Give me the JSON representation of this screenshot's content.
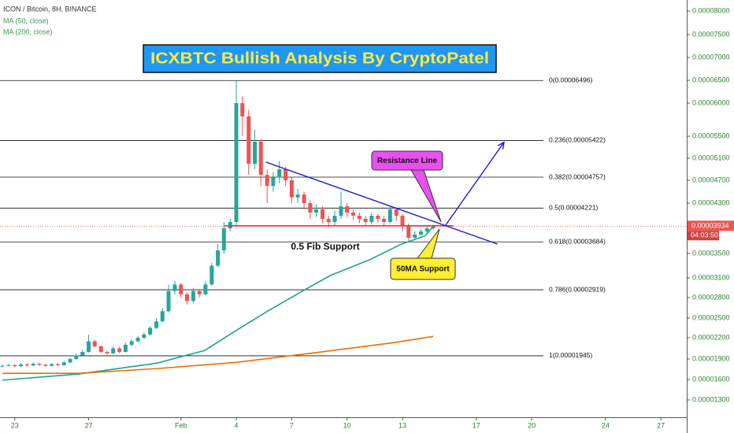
{
  "chart_data": {
    "type": "candlestick",
    "title": "ICXBTC Bullish Analysis By CryptoPatel",
    "symbol": "ICON / Bitcoin, 8H, BINANCE",
    "log_scale": false,
    "grid": false,
    "up_color": "#26a69a",
    "down_color": "#ef5350",
    "xlim": [
      -0.8,
      36.4
    ],
    "xticks": [
      {
        "value": 0,
        "label": "23"
      },
      {
        "value": 4,
        "label": "27"
      },
      {
        "value": 9,
        "label": "Feb"
      },
      {
        "value": 12,
        "label": "4"
      },
      {
        "value": 15,
        "label": "7"
      },
      {
        "value": 18,
        "label": "10"
      },
      {
        "value": 21,
        "label": "13"
      },
      {
        "value": 25,
        "label": "17"
      },
      {
        "value": 28,
        "label": "20"
      },
      {
        "value": 32,
        "label": "24"
      },
      {
        "value": 35,
        "label": "27"
      }
    ],
    "ylim": [
      1.05e-05,
      8.23e-05
    ],
    "yticks": [
      {
        "value": 8e-05,
        "label": "0.00008000"
      },
      {
        "value": 7.5e-05,
        "label": "0.00007500"
      },
      {
        "value": 7e-05,
        "label": "0.00007000"
      },
      {
        "value": 6.5e-05,
        "label": "0.00006500"
      },
      {
        "value": 6e-05,
        "label": "0.00006000"
      },
      {
        "value": 5.5e-05,
        "label": "0.00005500"
      },
      {
        "value": 5.1e-05,
        "label": "0.00005100"
      },
      {
        "value": 4.7e-05,
        "label": "0.00004700"
      },
      {
        "value": 4.3e-05,
        "label": "0.00004300"
      },
      {
        "value": 3.5e-05,
        "label": "0.00003500"
      },
      {
        "value": 3.1e-05,
        "label": "0.00003100"
      },
      {
        "value": 2.8e-05,
        "label": "0.00002800"
      },
      {
        "value": 2.5e-05,
        "label": "0.00002500"
      },
      {
        "value": 2.2e-05,
        "label": "0.00002200"
      },
      {
        "value": 1.9e-05,
        "label": "0.00001900"
      },
      {
        "value": 1.6e-05,
        "label": "0.00001600"
      },
      {
        "value": 1.3e-05,
        "label": "0.00001300"
      }
    ],
    "last_price": {
      "value": 3.934e-05,
      "label": "0.00003934"
    },
    "countdown": "04:03:50",
    "candles": {
      "x": [
        -0.67,
        -0.33,
        0,
        0.33,
        0.67,
        1,
        1.33,
        1.67,
        2,
        2.33,
        2.67,
        3,
        3.33,
        3.67,
        4,
        4.33,
        4.67,
        5,
        5.33,
        5.67,
        6,
        6.33,
        6.67,
        7,
        7.33,
        7.67,
        8,
        8.33,
        8.67,
        9,
        9.33,
        9.67,
        10,
        10.33,
        10.67,
        11,
        11.33,
        11.67,
        12,
        12.33,
        12.67,
        13,
        13.33,
        13.67,
        14,
        14.33,
        14.67,
        15,
        15.33,
        15.67,
        16,
        16.33,
        16.67,
        17,
        17.33,
        17.67,
        18,
        18.33,
        18.67,
        19,
        19.33,
        19.67,
        20,
        20.33,
        20.67,
        21,
        21.33,
        21.67,
        22,
        22.33,
        22.67
      ],
      "open": [
        1.79e-05,
        1.8e-05,
        1.81e-05,
        1.795e-05,
        1.82e-05,
        1.805e-05,
        1.83e-05,
        1.815e-05,
        1.8e-05,
        1.825e-05,
        1.81e-05,
        1.85e-05,
        1.9e-05,
        1.95e-05,
        2e-05,
        2.15e-05,
        2.08e-05,
        2e-05,
        1.98e-05,
        2.05e-05,
        2e-05,
        2.1e-05,
        2.15e-05,
        2.2e-05,
        2.25e-05,
        2.35e-05,
        2.45e-05,
        2.6e-05,
        2.9e-05,
        3e-05,
        2.85e-05,
        2.75e-05,
        2.9e-05,
        2.85e-05,
        3e-05,
        3.3e-05,
        3.55e-05,
        3.9e-05,
        4e-05,
        6e-05,
        5.8e-05,
        5e-05,
        5.4e-05,
        4.8e-05,
        4.6e-05,
        4.75e-05,
        4.9e-05,
        4.7e-05,
        4.4e-05,
        4.45e-05,
        4.3e-05,
        4.15e-05,
        4.2e-05,
        4.05e-05,
        4e-05,
        4.1e-05,
        4.25e-05,
        4.15e-05,
        4.1e-05,
        4.05e-05,
        4e-05,
        4.1e-05,
        4.05e-05,
        4e-05,
        4.2e-05,
        4.1e-05,
        3.95e-05,
        3.75e-05,
        3.8e-05,
        3.85e-05,
        3.9e-05
      ],
      "high": [
        1.82e-05,
        1.83e-05,
        1.825e-05,
        1.84e-05,
        1.835e-05,
        1.85e-05,
        1.845e-05,
        1.83e-05,
        1.84e-05,
        1.835e-05,
        1.87e-05,
        1.92e-05,
        1.98e-05,
        2.03e-05,
        2.25e-05,
        2.17e-05,
        2.09e-05,
        2.02e-05,
        2.08e-05,
        2.07e-05,
        2.13e-05,
        2.18e-05,
        2.23e-05,
        2.28e-05,
        2.38e-05,
        2.5e-05,
        2.65e-05,
        3e-05,
        3.05e-05,
        3.02e-05,
        2.88e-05,
        2.95e-05,
        2.93e-05,
        3.05e-05,
        3.35e-05,
        3.65e-05,
        4e-05,
        4.05e-05,
        6.496e-05,
        6.15e-05,
        5.9e-05,
        5.6e-05,
        5.45e-05,
        4.9e-05,
        4.85e-05,
        5.05e-05,
        4.95e-05,
        4.75e-05,
        4.55e-05,
        4.5e-05,
        4.35e-05,
        4.28e-05,
        4.25e-05,
        4.1e-05,
        4.18e-05,
        4.5e-05,
        4.3e-05,
        4.2e-05,
        4.15e-05,
        4.1e-05,
        4.15e-05,
        4.13e-05,
        4.1e-05,
        4.25e-05,
        4.23e-05,
        4.13e-05,
        3.98e-05,
        3.85e-05,
        3.89e-05,
        3.94e-05,
        3.96e-05
      ],
      "low": [
        1.775e-05,
        1.79e-05,
        1.78e-05,
        1.785e-05,
        1.79e-05,
        1.795e-05,
        1.8e-05,
        1.785e-05,
        1.79e-05,
        1.795e-05,
        1.8e-05,
        1.84e-05,
        1.89e-05,
        1.94e-05,
        1.99e-05,
        2.06e-05,
        1.98e-05,
        1.96e-05,
        1.97e-05,
        1.98e-05,
        1.99e-05,
        2.08e-05,
        2.13e-05,
        2.18e-05,
        2.23e-05,
        2.33e-05,
        2.43e-05,
        2.58e-05,
        2.85e-05,
        2.8e-05,
        2.7e-05,
        2.72e-05,
        2.8e-05,
        2.83e-05,
        2.98e-05,
        3.28e-05,
        3.5e-05,
        3.85e-05,
        3.95e-05,
        5.5e-05,
        4.8e-05,
        4.9e-05,
        4.6e-05,
        4.3e-05,
        4.5e-05,
        4.65e-05,
        4.6e-05,
        4.3e-05,
        4.3e-05,
        4.2e-05,
        4.05e-05,
        4.08e-05,
        3.98e-05,
        3.92e-05,
        3.95e-05,
        4.05e-05,
        4.08e-05,
        4.03e-05,
        3.98e-05,
        3.95e-05,
        3.96e-05,
        3.99e-05,
        3.95e-05,
        3.98e-05,
        4.02e-05,
        3.85e-05,
        3.7e-05,
        3.72e-05,
        3.78e-05,
        3.82e-05,
        3.88e-05
      ],
      "close": [
        1.8e-05,
        1.81e-05,
        1.795e-05,
        1.82e-05,
        1.805e-05,
        1.83e-05,
        1.815e-05,
        1.8e-05,
        1.825e-05,
        1.81e-05,
        1.85e-05,
        1.9e-05,
        1.95e-05,
        2e-05,
        2.15e-05,
        2.08e-05,
        2e-05,
        1.98e-05,
        2.05e-05,
        2e-05,
        2.1e-05,
        2.15e-05,
        2.2e-05,
        2.25e-05,
        2.35e-05,
        2.45e-05,
        2.6e-05,
        2.9e-05,
        3e-05,
        2.85e-05,
        2.75e-05,
        2.9e-05,
        2.85e-05,
        3e-05,
        3.3e-05,
        3.55e-05,
        3.9e-05,
        4e-05,
        6e-05,
        5.8e-05,
        5e-05,
        5.4e-05,
        4.8e-05,
        4.6e-05,
        4.75e-05,
        4.9e-05,
        4.7e-05,
        4.4e-05,
        4.45e-05,
        4.3e-05,
        4.15e-05,
        4.2e-05,
        4.05e-05,
        4e-05,
        4.1e-05,
        4.25e-05,
        4.15e-05,
        4.1e-05,
        4.05e-05,
        4e-05,
        4.1e-05,
        4.05e-05,
        4e-05,
        4.2e-05,
        4.1e-05,
        3.95e-05,
        3.75e-05,
        3.8e-05,
        3.85e-05,
        3.9e-05,
        3.934e-05
      ]
    },
    "series": [
      {
        "name": "MA (50, close)",
        "color": "#1aa58f",
        "x": [
          -0.67,
          3.46,
          7.72,
          10.28,
          11.99,
          13.69,
          15.4,
          17.1,
          19.24,
          20.95,
          22.23,
          22.67
        ],
        "values": [
          1.59e-05,
          1.68e-05,
          1.84e-05,
          2.02e-05,
          2.31e-05,
          2.6e-05,
          2.87e-05,
          3.14e-05,
          3.4e-05,
          3.65e-05,
          3.78e-05,
          3.93e-05
        ]
      },
      {
        "name": "MA (200, close)",
        "color": "#ef6c00",
        "x": [
          -0.67,
          3.46,
          7.72,
          12,
          16.3,
          20.5,
          22.67
        ],
        "values": [
          1.69e-05,
          1.69e-05,
          1.76e-05,
          1.85e-05,
          1.99e-05,
          2.13e-05,
          2.22e-05
        ]
      }
    ],
    "fib_levels": [
      {
        "value": 6.496e-05,
        "label": "0(0.00006496)"
      },
      {
        "value": 5.422e-05,
        "label": "0.236(0.00005422)"
      },
      {
        "value": 4.757e-05,
        "label": "0.382(0.00004757)"
      },
      {
        "value": 4.221e-05,
        "label": "0.5(0.00004221)"
      },
      {
        "value": 3.684e-05,
        "label": "0.618(0.00003684)"
      },
      {
        "value": 2.919e-05,
        "label": "0.786(0.00002919)"
      },
      {
        "value": 1.945e-05,
        "label": "1(0.00001945)"
      }
    ],
    "support_line": {
      "x": [
        11.35,
        23.76
      ],
      "values": [
        3.94e-05,
        3.94e-05
      ]
    },
    "resistance_trendline": {
      "x": [
        13.6,
        26.15
      ],
      "values": [
        5.03e-05,
        3.65e-05
      ]
    },
    "target_arrow": {
      "x": [
        23.3,
        26.5
      ],
      "values": [
        3.934e-05,
        5.39e-05
      ]
    },
    "annotations": {
      "resistance": "Resistance Line",
      "ma_support": "50MA Support",
      "fib_support": "0.5 Fib Support"
    }
  }
}
